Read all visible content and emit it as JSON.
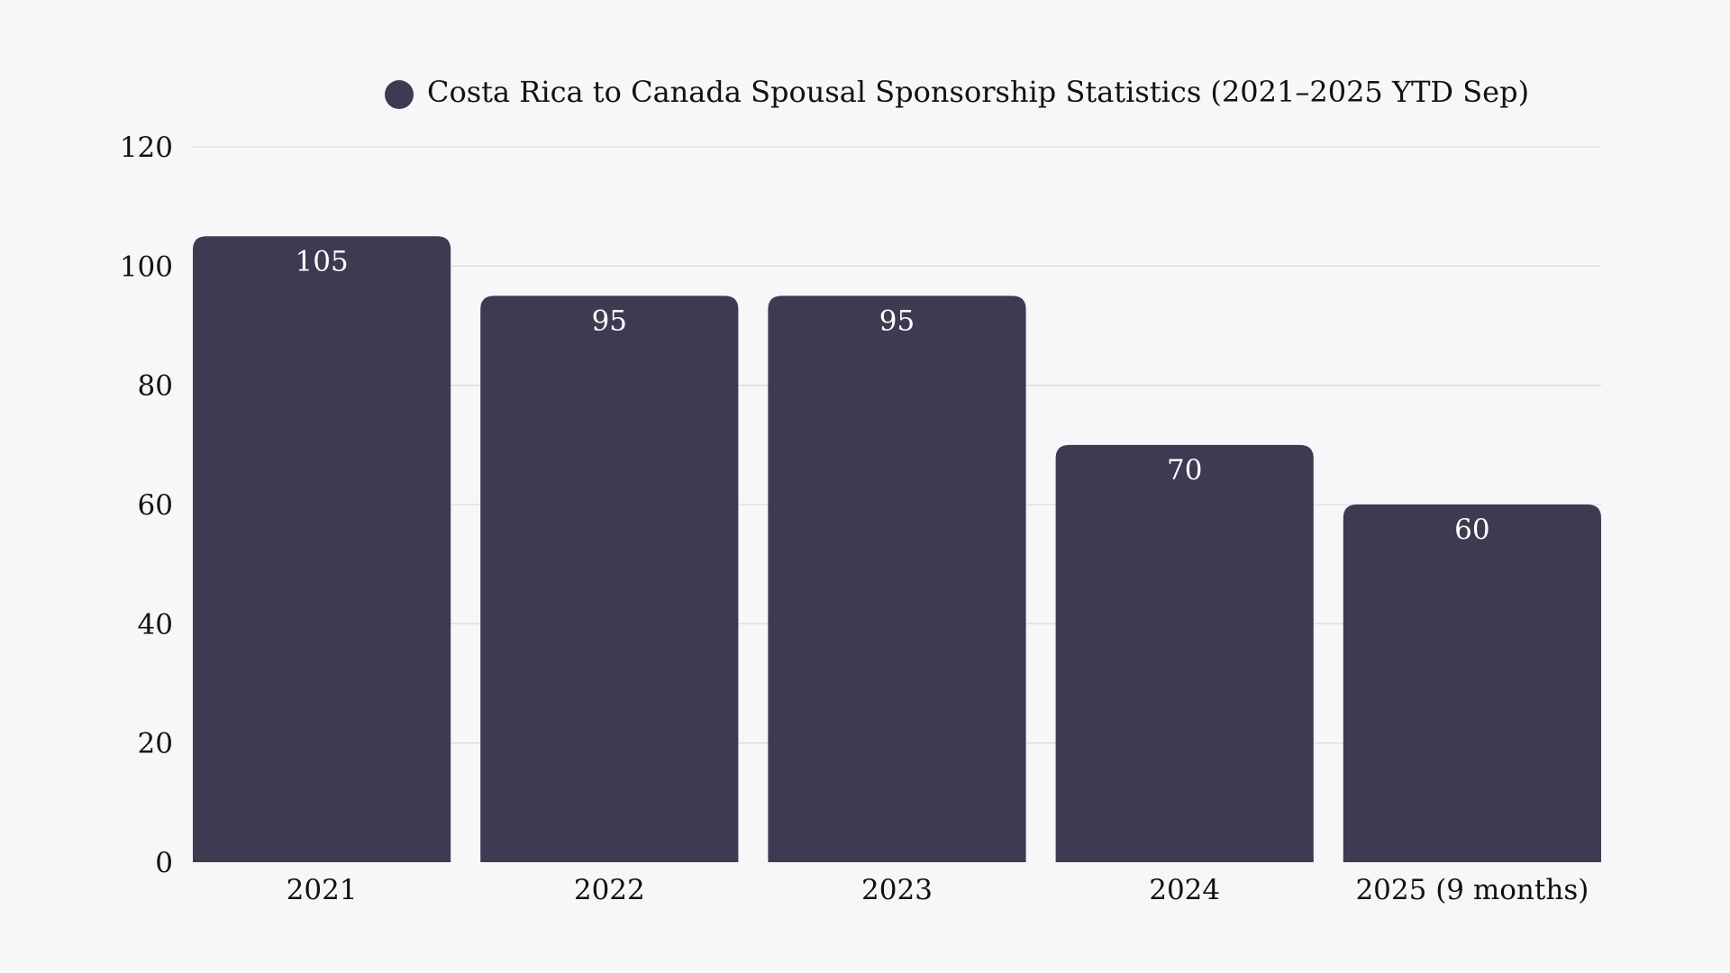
{
  "chart_data": {
    "type": "bar",
    "title": "",
    "xlabel": "",
    "ylabel": "",
    "categories": [
      "2021",
      "2022",
      "2023",
      "2024",
      "2025 (9 months)"
    ],
    "series": [
      {
        "name": "Costa Rica to Canada Spousal Sponsorship Statistics (2021–2025 YTD Sep)",
        "values": [
          105,
          95,
          95,
          70,
          60
        ]
      }
    ],
    "ylim": [
      0,
      120
    ],
    "yticks": [
      0,
      20,
      40,
      60,
      80,
      100,
      120
    ],
    "grid": true,
    "legend_position": "top",
    "data_labels": true,
    "colors": {
      "bar": "#3d3a52",
      "background": "#f5f7f9",
      "grid": "#dcdde2",
      "text": "#111111",
      "label": "#ffffff"
    }
  }
}
